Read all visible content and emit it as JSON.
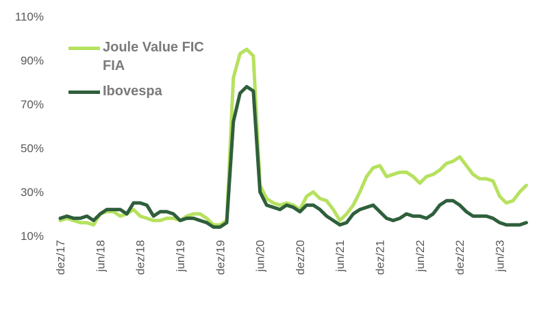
{
  "chart_data": {
    "type": "line",
    "categories": [
      "dez/17",
      null,
      null,
      null,
      null,
      null,
      "jun/18",
      null,
      null,
      null,
      null,
      null,
      "dez/18",
      null,
      null,
      null,
      null,
      null,
      "jun/19",
      null,
      null,
      null,
      null,
      null,
      "dez/19",
      null,
      null,
      null,
      null,
      null,
      "jun/20",
      null,
      null,
      null,
      null,
      null,
      "dez/20",
      null,
      null,
      null,
      null,
      null,
      "jun/21",
      null,
      null,
      null,
      null,
      null,
      "dez/21",
      null,
      null,
      null,
      null,
      null,
      "jun/22",
      null,
      null,
      null,
      null,
      null,
      "dez/22",
      null,
      null,
      null,
      null,
      null,
      "jun/23",
      null,
      null,
      null,
      null
    ],
    "series": [
      {
        "name": "Joule Value FIC FIA",
        "color": "#b6e15f",
        "values": [
          17,
          18,
          17,
          16,
          16,
          15,
          20,
          21,
          21,
          19,
          20,
          22,
          19,
          18,
          17,
          17,
          18,
          18,
          17,
          19,
          20,
          20,
          18,
          15,
          15,
          17,
          82,
          93,
          95,
          92,
          33,
          27,
          25,
          24,
          25,
          24,
          22,
          28,
          30,
          27,
          26,
          22,
          17,
          20,
          24,
          30,
          37,
          41,
          42,
          37,
          38,
          39,
          39,
          37,
          34,
          37,
          38,
          40,
          43,
          44,
          46,
          42,
          38,
          36,
          36,
          35,
          28,
          25,
          26,
          30,
          33
        ]
      },
      {
        "name": "Ibovespa",
        "color": "#2f5f3b",
        "values": [
          18,
          19,
          18,
          18,
          19,
          17,
          20,
          22,
          22,
          22,
          20,
          25,
          25,
          24,
          19,
          21,
          21,
          20,
          17,
          18,
          18,
          17,
          16,
          14,
          14,
          16,
          62,
          75,
          78,
          76,
          30,
          24,
          23,
          22,
          24,
          23,
          21,
          24,
          24,
          22,
          19,
          17,
          15,
          16,
          20,
          22,
          23,
          24,
          21,
          18,
          17,
          18,
          20,
          19,
          19,
          18,
          20,
          24,
          26,
          26,
          24,
          21,
          19,
          19,
          19,
          18,
          16,
          15,
          15,
          15,
          16
        ]
      }
    ],
    "ylim": [
      10,
      110
    ],
    "yticks": [
      {
        "value": 10,
        "label": "10%"
      },
      {
        "value": 30,
        "label": "30%"
      },
      {
        "value": 50,
        "label": "50%"
      },
      {
        "value": 70,
        "label": "70%"
      },
      {
        "value": 90,
        "label": "90%"
      },
      {
        "value": 110,
        "label": "110%"
      }
    ],
    "legend": "upper left",
    "grid": false
  }
}
